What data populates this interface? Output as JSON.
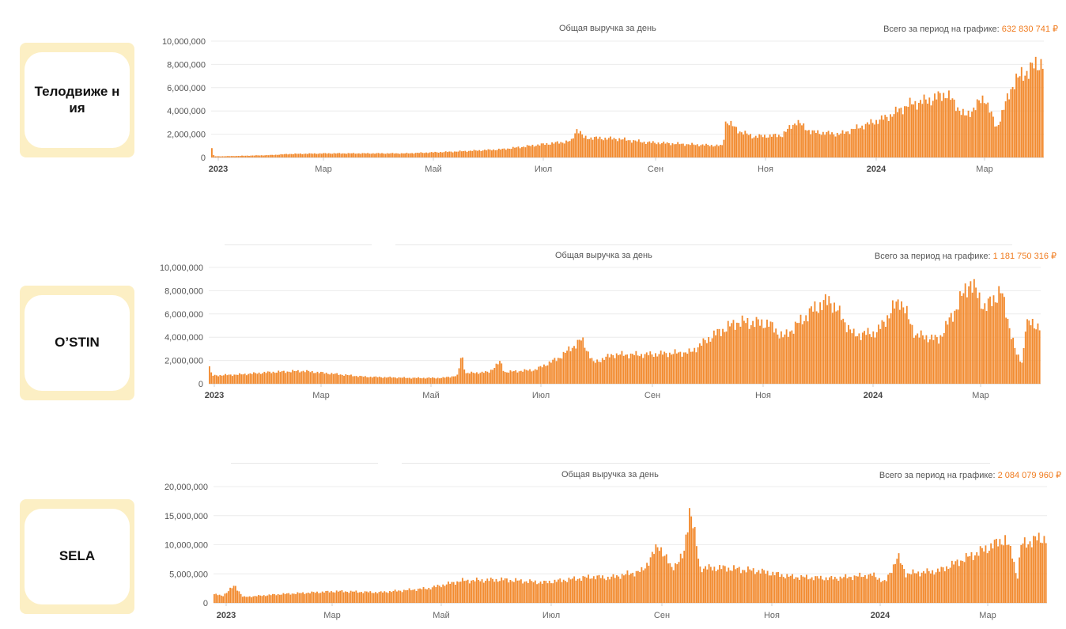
{
  "colors": {
    "bar": "#f28a2e",
    "accent": "#f07b1e",
    "card_bg": "#fcefc4"
  },
  "charts": [
    {
      "brand": "Телодвиже ния",
      "title": "Общая выручка за день",
      "total_label": "Всего за период на графике:",
      "total_value": "632 830 741 ₽"
    },
    {
      "brand": "O’STIN",
      "title": "Общая выручка за день",
      "total_label": "Всего за период на графике:",
      "total_value": "1 181 750 316 ₽"
    },
    {
      "brand": "SELA",
      "title": "Общая выручка за день",
      "total_label": "Всего за период на графике:",
      "total_value": "2 084 079 960 ₽"
    }
  ],
  "chart_data": [
    {
      "type": "bar",
      "title": "Общая выручка за день",
      "ylim": [
        0,
        10000000
      ],
      "y_ticks": [
        "10,000,000",
        "8,000,000",
        "6,000,000",
        "4,000,000",
        "2,000,000",
        "0"
      ],
      "x_ticks": [
        {
          "label": "2023",
          "bold": true
        },
        {
          "label": "Мар"
        },
        {
          "label": "Май"
        },
        {
          "label": "Июл"
        },
        {
          "label": "Сен"
        },
        {
          "label": "Ноя"
        },
        {
          "label": "2024",
          "bold": true
        },
        {
          "label": "Мар"
        }
      ],
      "grid": true,
      "bar_count": 470,
      "profile": [
        [
          0,
          800000
        ],
        [
          1,
          600000
        ],
        [
          2,
          100000
        ],
        [
          10,
          100000
        ],
        [
          60,
          200000
        ],
        [
          80,
          300000
        ],
        [
          120,
          350000
        ],
        [
          200,
          350000
        ],
        [
          250,
          500000
        ],
        [
          300,
          700000
        ],
        [
          350,
          1200000
        ],
        [
          372,
          1400000
        ],
        [
          378,
          2500000
        ],
        [
          385,
          1700000
        ],
        [
          420,
          1600000
        ],
        [
          450,
          1300000
        ],
        [
          500,
          1100000
        ],
        [
          529,
          1000000
        ],
        [
          532,
          3200000
        ],
        [
          545,
          2300000
        ],
        [
          560,
          1800000
        ],
        [
          590,
          1900000
        ],
        [
          605,
          3100000
        ],
        [
          620,
          2200000
        ],
        [
          650,
          2000000
        ],
        [
          700,
          3500000
        ],
        [
          720,
          4500000
        ],
        [
          745,
          5000000
        ],
        [
          760,
          5500000
        ],
        [
          780,
          3500000
        ],
        [
          800,
          5200000
        ],
        [
          812,
          2500000
        ],
        [
          830,
          6500000
        ],
        [
          845,
          7500000
        ],
        [
          860,
          8300000
        ]
      ]
    },
    {
      "type": "bar",
      "title": "Общая выручка за день",
      "ylim": [
        0,
        10000000
      ],
      "y_ticks": [
        "10,000,000",
        "8,000,000",
        "6,000,000",
        "4,000,000",
        "2,000,000",
        "0"
      ],
      "x_ticks": [
        {
          "label": "2023",
          "bold": true
        },
        {
          "label": "Мар"
        },
        {
          "label": "Май"
        },
        {
          "label": "Июл"
        },
        {
          "label": "Сен"
        },
        {
          "label": "Ноя"
        },
        {
          "label": "2024",
          "bold": true
        },
        {
          "label": "Мар"
        }
      ],
      "grid": true,
      "bar_count": 470,
      "profile": [
        [
          0,
          1500000
        ],
        [
          3,
          700000
        ],
        [
          40,
          800000
        ],
        [
          80,
          1000000
        ],
        [
          120,
          1100000
        ],
        [
          200,
          600000
        ],
        [
          260,
          500000
        ],
        [
          300,
          500000
        ],
        [
          320,
          700000
        ],
        [
          325,
          2600000
        ],
        [
          330,
          900000
        ],
        [
          360,
          1000000
        ],
        [
          375,
          1900000
        ],
        [
          380,
          1000000
        ],
        [
          420,
          1200000
        ],
        [
          450,
          2200000
        ],
        [
          480,
          3800000
        ],
        [
          495,
          1800000
        ],
        [
          520,
          2500000
        ],
        [
          560,
          2500000
        ],
        [
          620,
          2700000
        ],
        [
          650,
          4200000
        ],
        [
          680,
          5300000
        ],
        [
          720,
          5200000
        ],
        [
          740,
          4000000
        ],
        [
          780,
          6500000
        ],
        [
          800,
          7200000
        ],
        [
          830,
          4200000
        ],
        [
          860,
          4400000
        ],
        [
          890,
          7300000
        ],
        [
          910,
          4200000
        ],
        [
          940,
          3800000
        ],
        [
          960,
          6200000
        ],
        [
          980,
          8800000
        ],
        [
          1000,
          6500000
        ],
        [
          1020,
          8000000
        ],
        [
          1040,
          2500000
        ],
        [
          1048,
          1800000
        ],
        [
          1052,
          5200000
        ],
        [
          1070,
          5000000
        ]
      ]
    },
    {
      "type": "bar",
      "title": "Общая выручка за день",
      "ylim": [
        0,
        20000000
      ],
      "y_ticks": [
        "20,000,000",
        "15,000,000",
        "10,000,000",
        "5,000,000",
        "0"
      ],
      "x_ticks": [
        {
          "label": "2023",
          "bold": true
        },
        {
          "label": "Мар"
        },
        {
          "label": "Май"
        },
        {
          "label": "Июл"
        },
        {
          "label": "Сен"
        },
        {
          "label": "Ноя"
        },
        {
          "label": "2024",
          "bold": true
        },
        {
          "label": "Мар"
        }
      ],
      "grid": true,
      "bar_count": 470,
      "profile": [
        [
          0,
          1500000
        ],
        [
          10,
          1200000
        ],
        [
          25,
          3000000
        ],
        [
          35,
          1000000
        ],
        [
          80,
          1500000
        ],
        [
          150,
          2000000
        ],
        [
          200,
          1800000
        ],
        [
          260,
          2500000
        ],
        [
          300,
          3800000
        ],
        [
          350,
          4000000
        ],
        [
          400,
          3500000
        ],
        [
          460,
          4500000
        ],
        [
          480,
          4300000
        ],
        [
          520,
          5500000
        ],
        [
          540,
          10000000
        ],
        [
          555,
          6000000
        ],
        [
          570,
          8000000
        ],
        [
          577,
          16300000
        ],
        [
          582,
          13000000
        ],
        [
          590,
          6000000
        ],
        [
          620,
          6000000
        ],
        [
          660,
          5500000
        ],
        [
          700,
          4500000
        ],
        [
          750,
          4200000
        ],
        [
          800,
          4800000
        ],
        [
          815,
          3500000
        ],
        [
          830,
          8000000
        ],
        [
          840,
          5000000
        ],
        [
          880,
          5500000
        ],
        [
          910,
          7500000
        ],
        [
          940,
          9500000
        ],
        [
          960,
          11000000
        ],
        [
          970,
          8000000
        ],
        [
          975,
          4000000
        ],
        [
          980,
          10000000
        ],
        [
          1000,
          11000000
        ],
        [
          1010,
          11200000
        ]
      ]
    }
  ]
}
